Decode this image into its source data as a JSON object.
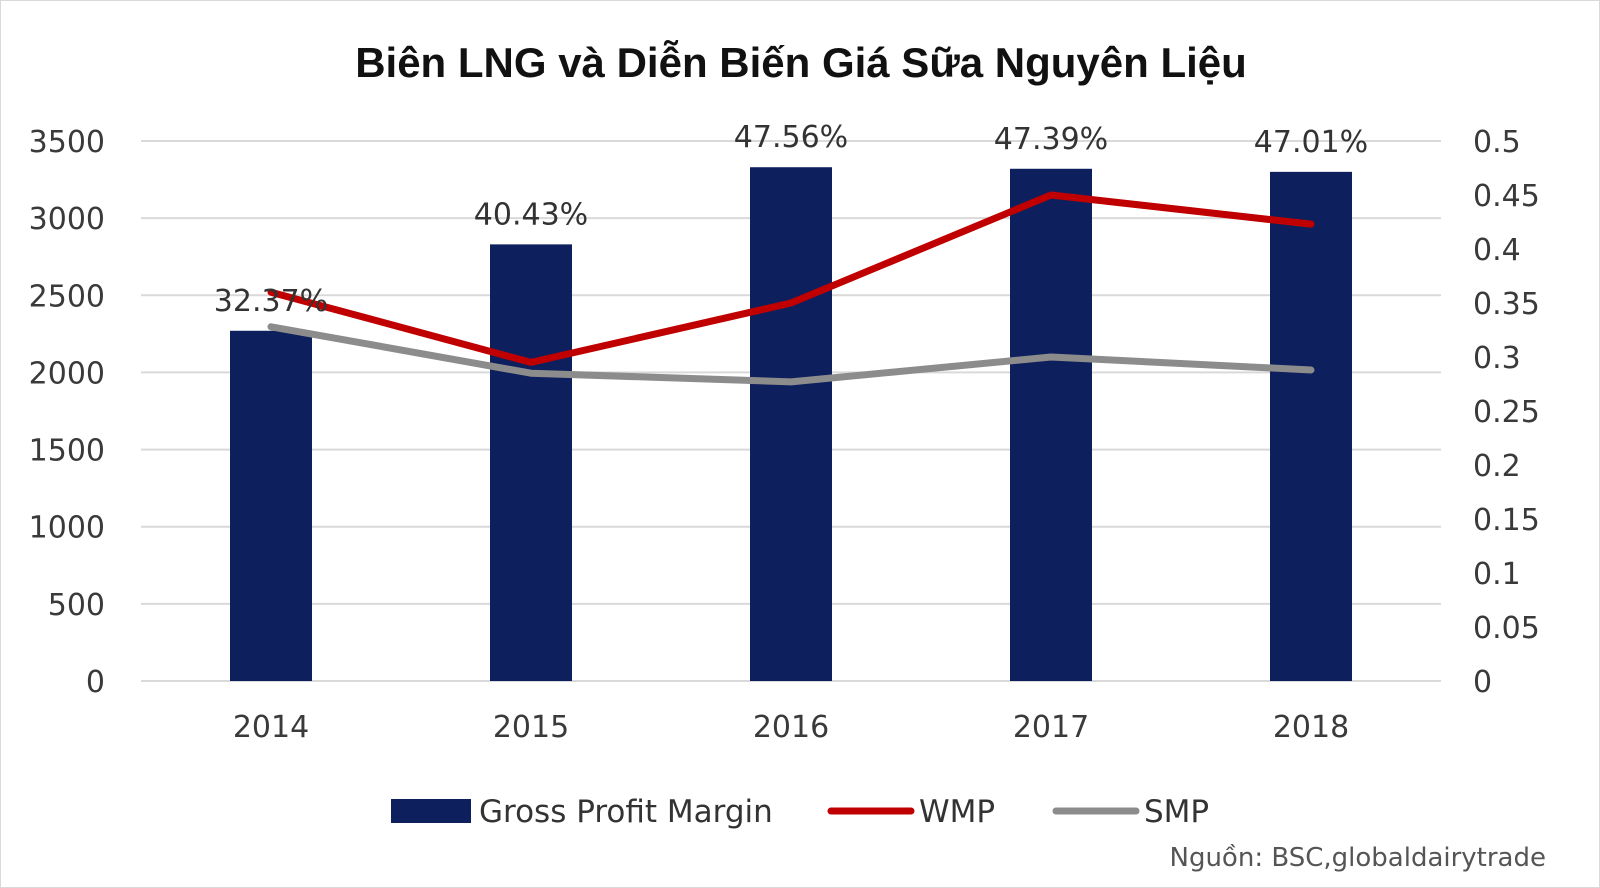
{
  "chart_data": {
    "type": "bar",
    "title": "Biên LNG và Diễn Biến Giá Sữa Nguyên Liệu",
    "categories": [
      "2014",
      "2015",
      "2016",
      "2017",
      "2018"
    ],
    "left_axis": {
      "ylim": [
        0,
        3500
      ],
      "ticks": [
        "0",
        "500",
        "1000",
        "1500",
        "2000",
        "2500",
        "3000",
        "3500"
      ]
    },
    "right_axis": {
      "ylim": [
        0,
        0.5
      ],
      "ticks": [
        "0",
        "0.05",
        "0.1",
        "0.15",
        "0.2",
        "0.25",
        "0.3",
        "0.35",
        "0.4",
        "0.45",
        "0.5"
      ]
    },
    "series": [
      {
        "name": "Gross Profit Margin",
        "type": "bar",
        "axis": "left",
        "color": "#0d1f5c",
        "values": [
          2270,
          2830,
          3330,
          3320,
          3300
        ]
      },
      {
        "name": "WMP",
        "type": "line",
        "axis": "right",
        "color": "#c00000",
        "values": [
          0.36,
          0.295,
          0.35,
          0.45,
          0.423
        ]
      },
      {
        "name": "SMP",
        "type": "line",
        "axis": "right",
        "color": "#8c8c8c",
        "values": [
          0.328,
          0.285,
          0.277,
          0.3,
          0.288
        ]
      }
    ],
    "data_labels": [
      "32.37%",
      "40.43%",
      "47.56%",
      "47.39%",
      "47.01%"
    ],
    "grid": true,
    "legend_position": "bottom"
  },
  "source_note": "Nguồn: BSC,globaldairytrade"
}
